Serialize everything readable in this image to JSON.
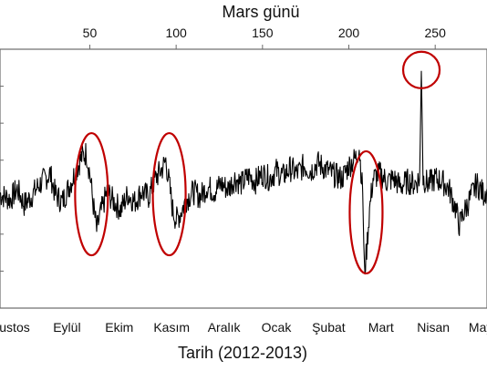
{
  "chart_data": {
    "type": "line",
    "top_axis": {
      "label": "Mars günü",
      "ticks": [
        50,
        100,
        150,
        200,
        250
      ]
    },
    "bottom_axis": {
      "label": "Tarih (2012-2013)",
      "ticks": [
        "ustos",
        "Eylül",
        "Ekim",
        "Kasım",
        "Aralık",
        "Ocak",
        "Şubat",
        "Mart",
        "Nisan",
        "Mayıs"
      ]
    },
    "sol_range": [
      -2,
      280
    ],
    "y_tick_count": 7,
    "grid": false,
    "series": [
      {
        "line_color": "#000000",
        "points": [
          [
            -2,
            0.44
          ],
          [
            4,
            0.42
          ],
          [
            8,
            0.46
          ],
          [
            12,
            0.4
          ],
          [
            16,
            0.43
          ],
          [
            20,
            0.47
          ],
          [
            24,
            0.5
          ],
          [
            27,
            0.52
          ],
          [
            30,
            0.44
          ],
          [
            34,
            0.41
          ],
          [
            38,
            0.47
          ],
          [
            42,
            0.53
          ],
          [
            45,
            0.58
          ],
          [
            48,
            0.6
          ],
          [
            50,
            0.52
          ],
          [
            52,
            0.4
          ],
          [
            54,
            0.3
          ],
          [
            56,
            0.36
          ],
          [
            60,
            0.45
          ],
          [
            64,
            0.41
          ],
          [
            68,
            0.38
          ],
          [
            72,
            0.44
          ],
          [
            76,
            0.41
          ],
          [
            80,
            0.45
          ],
          [
            84,
            0.43
          ],
          [
            88,
            0.5
          ],
          [
            92,
            0.54
          ],
          [
            94,
            0.57
          ],
          [
            96,
            0.48
          ],
          [
            98,
            0.38
          ],
          [
            100,
            0.34
          ],
          [
            102,
            0.36
          ],
          [
            106,
            0.42
          ],
          [
            110,
            0.45
          ],
          [
            114,
            0.43
          ],
          [
            118,
            0.47
          ],
          [
            122,
            0.45
          ],
          [
            126,
            0.48
          ],
          [
            130,
            0.46
          ],
          [
            134,
            0.5
          ],
          [
            138,
            0.48
          ],
          [
            142,
            0.51
          ],
          [
            146,
            0.49
          ],
          [
            150,
            0.52
          ],
          [
            154,
            0.5
          ],
          [
            158,
            0.53
          ],
          [
            162,
            0.51
          ],
          [
            166,
            0.54
          ],
          [
            170,
            0.52
          ],
          [
            174,
            0.55
          ],
          [
            178,
            0.53
          ],
          [
            182,
            0.56
          ],
          [
            186,
            0.54
          ],
          [
            190,
            0.52
          ],
          [
            196,
            0.5
          ],
          [
            200,
            0.55
          ],
          [
            204,
            0.58
          ],
          [
            206,
            0.62
          ],
          [
            208,
            0.45
          ],
          [
            209,
            0.14
          ],
          [
            210,
            0.2
          ],
          [
            212,
            0.38
          ],
          [
            214,
            0.5
          ],
          [
            218,
            0.52
          ],
          [
            222,
            0.49
          ],
          [
            226,
            0.5
          ],
          [
            230,
            0.47
          ],
          [
            234,
            0.49
          ],
          [
            238,
            0.48
          ],
          [
            241,
            0.5
          ],
          [
            242,
            0.92
          ],
          [
            243,
            0.5
          ],
          [
            246,
            0.48
          ],
          [
            250,
            0.5
          ],
          [
            254,
            0.49
          ],
          [
            258,
            0.46
          ],
          [
            262,
            0.38
          ],
          [
            264,
            0.32
          ],
          [
            266,
            0.36
          ],
          [
            270,
            0.42
          ],
          [
            274,
            0.48
          ],
          [
            278,
            0.44
          ],
          [
            280,
            0.46
          ]
        ]
      }
    ],
    "highlights": [
      {
        "shape": "ellipse",
        "center_sol": 51,
        "center_y": 0.44,
        "color": "#c00000"
      },
      {
        "shape": "ellipse",
        "center_sol": 96,
        "center_y": 0.44,
        "color": "#c00000"
      },
      {
        "shape": "ellipse",
        "center_sol": 210,
        "center_y": 0.37,
        "color": "#c00000"
      },
      {
        "shape": "circle",
        "center_sol": 242,
        "center_y": 0.92,
        "color": "#c00000"
      }
    ]
  }
}
